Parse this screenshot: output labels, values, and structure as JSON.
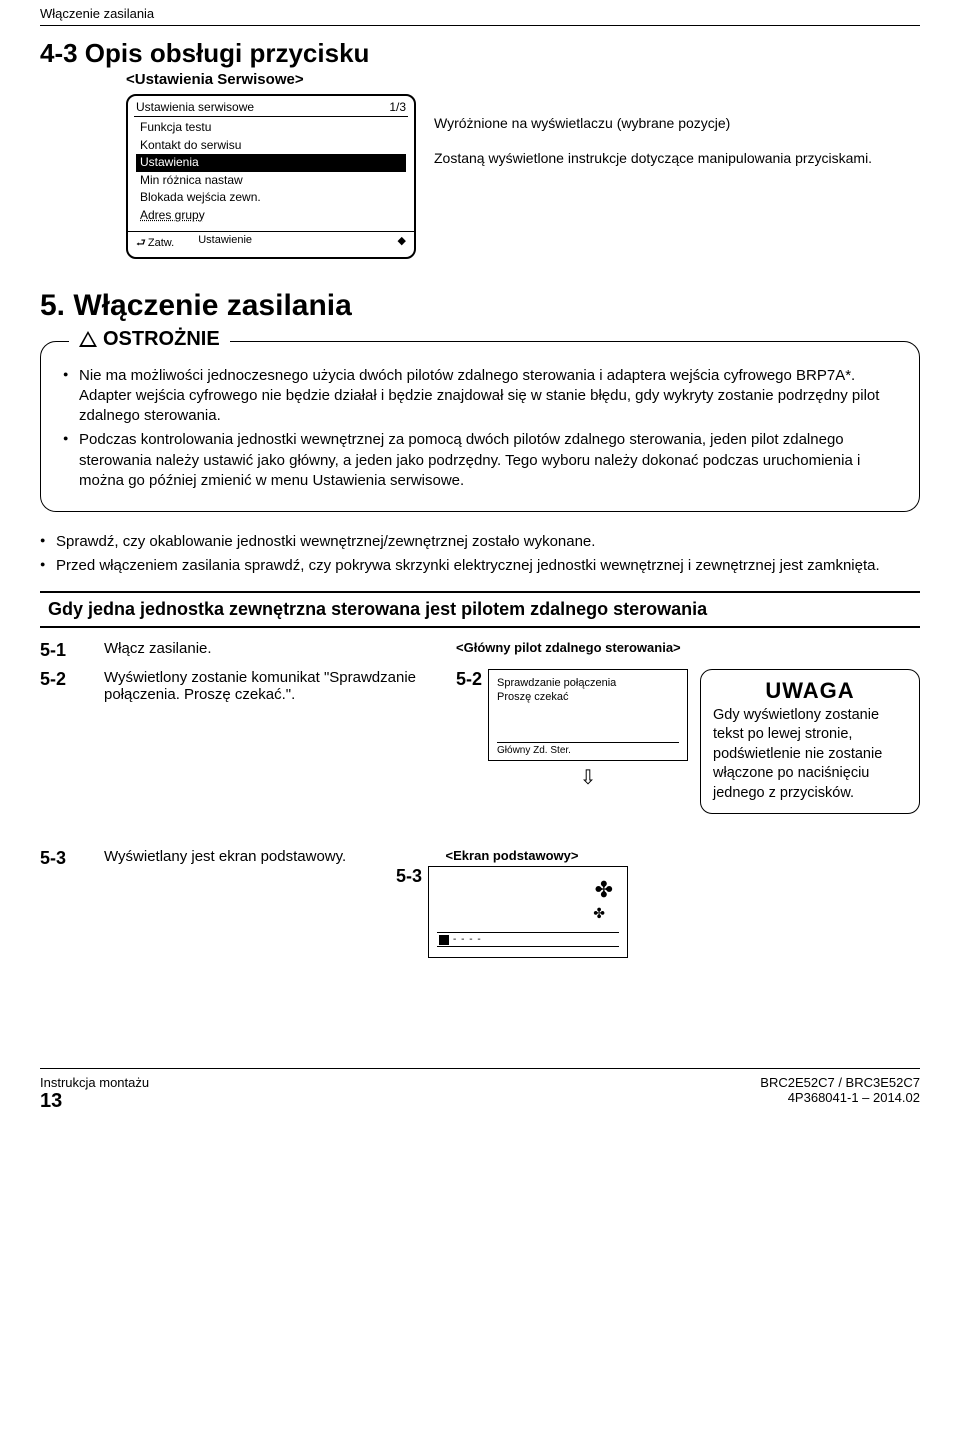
{
  "header": {
    "title": "Włączenie zasilania"
  },
  "section43": {
    "heading": "4-3 Opis obsługi przycisku",
    "subheading": "<Ustawienia Serwisowe>",
    "screen": {
      "title": "Ustawienia serwisowe",
      "page": "1/3",
      "items": [
        {
          "label": "Funkcja testu",
          "selected": false
        },
        {
          "label": "Kontakt do serwisu",
          "selected": false
        },
        {
          "label": "Ustawienia",
          "selected": true
        },
        {
          "label": "Min różnica nastaw",
          "selected": false
        },
        {
          "label": "Blokada wejścia zewn.",
          "selected": false
        },
        {
          "label": "Adres grupy",
          "selected": false,
          "dotted": true
        }
      ],
      "foot_back": "Zatw.",
      "foot_set": "Ustawienie",
      "foot_arrows": "◆"
    },
    "callout1": "Wyróżnione na wyświetlaczu (wybrane pozycje)",
    "callout2": "Zostaną wyświetlone instrukcje dotyczące manipulowania przyciskami."
  },
  "section5": {
    "heading": "5. Włączenie zasilania",
    "ostroznie_label": "OSTROŻNIE",
    "bullets": [
      "Nie ma możliwości jednoczesnego użycia dwóch pilotów zdalnego sterowania i adaptera wejścia cyfrowego BRP7A*. Adapter wejścia cyfrowego nie będzie działał i będzie znajdował się w stanie błędu, gdy wykryty zostanie podrzędny pilot zdalnego sterowania.",
      "Podczas kontrolowania jednostki wewnętrznej za pomocą dwóch pilotów zdalnego sterowania, jeden pilot zdalnego sterowania należy ustawić jako główny, a jeden jako podrzędny. Tego wyboru należy dokonać podczas uruchomienia i można go później zmienić w menu Ustawienia serwisowe."
    ],
    "outside_bullets": [
      "Sprawdź, czy okablowanie jednostki wewnętrznej/zewnętrznej zostało wykonane.",
      "Przed włączeniem zasilania sprawdź, czy pokrywa skrzynki elektrycznej jednostki wewnętrznej i zewnętrznej jest zamknięta."
    ],
    "bar": "Gdy jedna jednostka zewnętrzna sterowana jest pilotem zdalnego sterowania",
    "step51": {
      "num": "5-1",
      "text": "Włącz zasilanie."
    },
    "step52": {
      "num": "5-2",
      "text": "Wyświetlony zostanie komunikat \"Sprawdzanie połączenia. Proszę czekać.\".",
      "mid_num": "5-2",
      "title": "<Główny pilot zdalnego sterowania>",
      "lcd_line1": "Sprawdzanie połączenia",
      "lcd_line2": "Proszę czekać",
      "lcd_foot": "Główny Zd. Ster."
    },
    "uwaga": {
      "title": "UWAGA",
      "text": "Gdy wyświetlony zostanie tekst po lewej stronie, podświetlenie nie zostanie włączone po naciśnięciu jednego z przycisków."
    },
    "step53": {
      "num": "5-3",
      "text": "Wyświetlany jest ekran podstawowy.",
      "mid_num": "5-3",
      "title": "<Ekran podstawowy>",
      "dash": "- - - -"
    }
  },
  "footer": {
    "left1": "Instrukcja montażu",
    "page": "13",
    "right1": "BRC2E52C7 / BRC3E52C7",
    "right2": "4P368041-1 – 2014.02"
  }
}
